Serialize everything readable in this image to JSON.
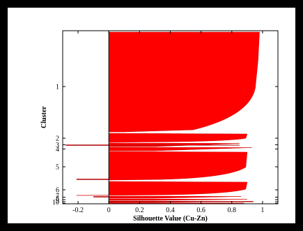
{
  "colors": {
    "page_border": "#000000",
    "background": "#ffffff",
    "bar_fill": "#ff0000",
    "bar_edge": "#cc0000",
    "axis": "#000000"
  },
  "chart_data": {
    "type": "bar",
    "orientation": "horizontal",
    "title": "",
    "xlabel": "Silhouette Value (Cu-Zn)",
    "ylabel": "Cluster",
    "xlim": [
      -0.3,
      1.1
    ],
    "x_ticks": [
      -0.2,
      0,
      0.2,
      0.4,
      0.6,
      0.8,
      1
    ],
    "x_tick_labels": [
      "-0.2",
      "0",
      "0.2",
      "0.4",
      "0.6",
      "0.8",
      "1"
    ],
    "y_tick_labels": [
      "1",
      "2",
      "3",
      "4",
      "5",
      "6",
      "7",
      "8",
      "9",
      "10"
    ],
    "grid": false,
    "legend": "none",
    "clusters": [
      {
        "name": "1",
        "min_value": 0.0,
        "max_value": 0.98
      },
      {
        "name": "2",
        "min_value": 0.0,
        "max_value": 0.9
      },
      {
        "name": "3",
        "min_value": -0.28,
        "max_value": 0.85
      },
      {
        "name": "4",
        "min_value": 0.0,
        "max_value": 0.93
      },
      {
        "name": "5",
        "min_value": 0.0,
        "max_value": 0.9
      },
      {
        "name": "6",
        "min_value": -0.21,
        "max_value": 0.9
      },
      {
        "name": "7",
        "min_value": -0.1,
        "max_value": 0.86
      },
      {
        "name": "8",
        "min_value": 0.0,
        "max_value": 0.9
      },
      {
        "name": "9",
        "min_value": 0.0,
        "max_value": 0.94
      },
      {
        "name": "10",
        "min_value": 0.0,
        "max_value": 0.88
      }
    ]
  }
}
